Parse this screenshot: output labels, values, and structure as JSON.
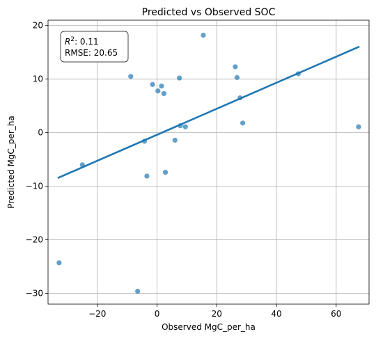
{
  "chart_data": {
    "type": "scatter",
    "title": "Predicted vs Observed SOC",
    "xlabel": "Observed MgC_per_ha",
    "ylabel": "Predicted MgC_per_ha",
    "xlim": [
      -36.5,
      71
    ],
    "ylim": [
      -32,
      21
    ],
    "xticks": [
      -20,
      0,
      20,
      40,
      60
    ],
    "yticks": [
      -30,
      -20,
      -10,
      0,
      10,
      20
    ],
    "xtick_labels": [
      "−20",
      "0",
      "20",
      "40",
      "60"
    ],
    "ytick_labels": [
      "−30",
      "−20",
      "−10",
      "0",
      "10",
      "20"
    ],
    "grid": true,
    "point_color": "#1f77b4",
    "line_color": "#1f77b4",
    "points": [
      {
        "x": -32.8,
        "y": -24.3
      },
      {
        "x": -25.0,
        "y": -6.0
      },
      {
        "x": -8.8,
        "y": 10.5
      },
      {
        "x": -6.5,
        "y": -29.6
      },
      {
        "x": -4.2,
        "y": -1.6
      },
      {
        "x": -3.4,
        "y": -8.1
      },
      {
        "x": -1.5,
        "y": 9.0
      },
      {
        "x": 0.3,
        "y": 7.8
      },
      {
        "x": 1.5,
        "y": 8.7
      },
      {
        "x": 2.3,
        "y": 7.3
      },
      {
        "x": 2.8,
        "y": -7.4
      },
      {
        "x": 6.0,
        "y": -1.4
      },
      {
        "x": 7.5,
        "y": 10.2
      },
      {
        "x": 7.8,
        "y": 1.3
      },
      {
        "x": 9.5,
        "y": 1.1
      },
      {
        "x": 15.5,
        "y": 18.2
      },
      {
        "x": 26.2,
        "y": 12.3
      },
      {
        "x": 26.8,
        "y": 10.3
      },
      {
        "x": 27.8,
        "y": 6.5
      },
      {
        "x": 28.7,
        "y": 1.8
      },
      {
        "x": 47.3,
        "y": 11.0
      },
      {
        "x": 67.5,
        "y": 1.1
      }
    ],
    "fit_line": {
      "x": [
        -33,
        67.5
      ],
      "y": [
        -8.4,
        16.0
      ]
    },
    "annotation": {
      "r2_label": "R",
      "r2_superscript": "2",
      "r2_value": ": 0.11",
      "rmse": "RMSE: 20.65"
    }
  }
}
